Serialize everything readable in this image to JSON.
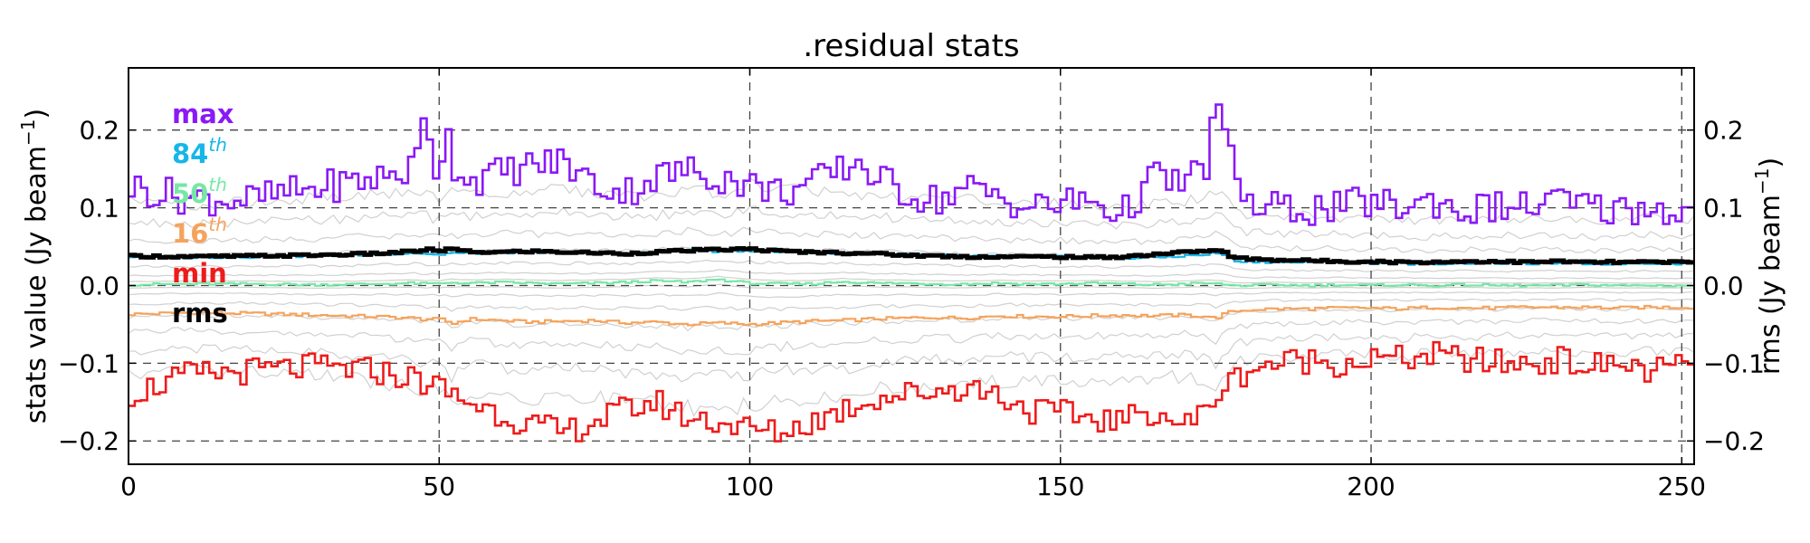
{
  "chart_data": {
    "type": "line",
    "title": ".residual stats",
    "ylabel": "stats value (Jy beam",
    "ylabel_sup": "−1",
    "ylabel_close": ")",
    "ylabel_right": "rms (Jy beam",
    "ylabel_right_sup": "−1",
    "ylabel_right_close": ")",
    "xlim": [
      0,
      252
    ],
    "ylim": [
      -0.23,
      0.28
    ],
    "x_ticks": [
      0,
      50,
      100,
      150,
      200,
      250
    ],
    "y_ticks": [
      -0.2,
      -0.1,
      0.0,
      0.1,
      0.2
    ],
    "x_tick_labels": [
      "0",
      "50",
      "100",
      "150",
      "200",
      "250"
    ],
    "y_tick_labels": [
      "−0.2",
      "−0.1",
      "0.0",
      "0.1",
      "0.2"
    ],
    "y_right_tick_labels": [
      "−0.2",
      "−0.1",
      "0.0",
      "0.1",
      "0.2"
    ],
    "grid": true,
    "legend_position": "top-left",
    "legend": [
      {
        "label": "max",
        "sup": "",
        "color": "#8a19f5"
      },
      {
        "label": "84",
        "sup": "th",
        "color": "#17b6e8"
      },
      {
        "label": "50",
        "sup": "th",
        "color": "#76e8a4"
      },
      {
        "label": "16",
        "sup": "th",
        "color": "#f5a35c"
      },
      {
        "label": "min",
        "sup": "",
        "color": "#ee1b1b"
      },
      {
        "label": "rms",
        "sup": "",
        "color": "#000000"
      }
    ],
    "x_breakpoints": [
      0,
      10,
      20,
      30,
      40,
      46,
      48,
      49,
      50,
      51,
      52,
      55,
      60,
      65,
      70,
      75,
      80,
      85,
      90,
      95,
      100,
      105,
      110,
      115,
      118,
      120,
      125,
      130,
      135,
      140,
      145,
      150,
      155,
      160,
      165,
      170,
      174,
      175,
      176,
      177,
      178,
      180,
      181,
      185,
      190,
      195,
      200,
      205,
      210,
      215,
      220,
      225,
      230,
      235,
      240,
      245,
      250,
      252
    ],
    "series": [
      {
        "name": "max",
        "color": "#8a19f5",
        "width": 2.6,
        "values": [
          0.128,
          0.112,
          0.11,
          0.125,
          0.138,
          0.15,
          0.225,
          0.17,
          0.13,
          0.22,
          0.16,
          0.135,
          0.145,
          0.155,
          0.16,
          0.13,
          0.12,
          0.14,
          0.148,
          0.14,
          0.13,
          0.12,
          0.13,
          0.15,
          0.16,
          0.14,
          0.12,
          0.11,
          0.125,
          0.115,
          0.1,
          0.105,
          0.11,
          0.09,
          0.14,
          0.13,
          0.16,
          0.245,
          0.21,
          0.18,
          0.14,
          0.12,
          0.095,
          0.1,
          0.098,
          0.1,
          0.108,
          0.1,
          0.11,
          0.095,
          0.102,
          0.1,
          0.11,
          0.1,
          0.098,
          0.1,
          0.095,
          0.095
        ]
      },
      {
        "name": "84th",
        "color": "#17b6e8",
        "width": 2.2,
        "values": [
          0.037,
          0.036,
          0.037,
          0.038,
          0.04,
          0.042,
          0.041,
          0.04,
          0.039,
          0.041,
          0.042,
          0.041,
          0.043,
          0.042,
          0.043,
          0.042,
          0.041,
          0.043,
          0.045,
          0.044,
          0.045,
          0.043,
          0.042,
          0.042,
          0.041,
          0.041,
          0.04,
          0.039,
          0.038,
          0.037,
          0.037,
          0.037,
          0.036,
          0.035,
          0.036,
          0.038,
          0.04,
          0.042,
          0.041,
          0.038,
          0.033,
          0.03,
          0.031,
          0.03,
          0.03,
          0.03,
          0.029,
          0.028,
          0.028,
          0.029,
          0.029,
          0.028,
          0.029,
          0.028,
          0.028,
          0.029,
          0.028,
          0.028
        ]
      },
      {
        "name": "50th",
        "color": "#76e8a4",
        "width": 2.2,
        "values": [
          0.001,
          0.002,
          0.002,
          0.001,
          0.002,
          0.003,
          0.002,
          0.003,
          0.002,
          0.003,
          0.004,
          0.003,
          0.004,
          0.003,
          0.002,
          0.003,
          0.004,
          0.006,
          0.004,
          0.008,
          0.003,
          0.002,
          0.002,
          0.005,
          0.004,
          0.003,
          0.003,
          0.002,
          0.002,
          0.003,
          0.002,
          0.002,
          0.003,
          0.002,
          0.001,
          0.002,
          0.003,
          0.002,
          0.002,
          0.001,
          0.0,
          0.0,
          0.0,
          0.001,
          0.0,
          0.001,
          0.0,
          0.001,
          0.0,
          0.001,
          0.0,
          0.0,
          0.0,
          0.001,
          0.0,
          0.0,
          0.0,
          0.0
        ]
      },
      {
        "name": "16th",
        "color": "#f5a35c",
        "width": 2.2,
        "values": [
          -0.037,
          -0.035,
          -0.036,
          -0.038,
          -0.04,
          -0.042,
          -0.044,
          -0.042,
          -0.045,
          -0.043,
          -0.05,
          -0.043,
          -0.045,
          -0.047,
          -0.046,
          -0.045,
          -0.048,
          -0.047,
          -0.05,
          -0.048,
          -0.05,
          -0.048,
          -0.046,
          -0.045,
          -0.044,
          -0.043,
          -0.042,
          -0.041,
          -0.042,
          -0.039,
          -0.04,
          -0.04,
          -0.039,
          -0.038,
          -0.039,
          -0.038,
          -0.04,
          -0.043,
          -0.038,
          -0.036,
          -0.033,
          -0.032,
          -0.031,
          -0.03,
          -0.03,
          -0.029,
          -0.029,
          -0.03,
          -0.028,
          -0.029,
          -0.029,
          -0.028,
          -0.028,
          -0.028,
          -0.029,
          -0.028,
          -0.028,
          -0.028
        ]
      },
      {
        "name": "min",
        "color": "#ee1b1b",
        "width": 2.6,
        "values": [
          -0.14,
          -0.115,
          -0.11,
          -0.105,
          -0.11,
          -0.12,
          -0.125,
          -0.13,
          -0.13,
          -0.135,
          -0.14,
          -0.15,
          -0.165,
          -0.18,
          -0.19,
          -0.175,
          -0.16,
          -0.15,
          -0.17,
          -0.175,
          -0.185,
          -0.19,
          -0.175,
          -0.16,
          -0.15,
          -0.145,
          -0.14,
          -0.135,
          -0.13,
          -0.14,
          -0.16,
          -0.165,
          -0.17,
          -0.175,
          -0.16,
          -0.18,
          -0.16,
          -0.14,
          -0.13,
          -0.13,
          -0.12,
          -0.11,
          -0.105,
          -0.1,
          -0.095,
          -0.1,
          -0.095,
          -0.095,
          -0.09,
          -0.095,
          -0.1,
          -0.1,
          -0.095,
          -0.105,
          -0.1,
          -0.11,
          -0.105,
          -0.105
        ]
      },
      {
        "name": "rms",
        "color": "#000000",
        "width": 5,
        "values": [
          0.038,
          0.037,
          0.038,
          0.039,
          0.041,
          0.044,
          0.046,
          0.046,
          0.044,
          0.046,
          0.047,
          0.043,
          0.043,
          0.044,
          0.043,
          0.042,
          0.041,
          0.043,
          0.045,
          0.046,
          0.047,
          0.044,
          0.043,
          0.042,
          0.042,
          0.041,
          0.039,
          0.038,
          0.037,
          0.037,
          0.037,
          0.037,
          0.036,
          0.037,
          0.04,
          0.043,
          0.045,
          0.045,
          0.044,
          0.04,
          0.035,
          0.035,
          0.034,
          0.033,
          0.032,
          0.031,
          0.031,
          0.03,
          0.03,
          0.031,
          0.031,
          0.03,
          0.031,
          0.03,
          0.03,
          0.03,
          0.03,
          0.03
        ]
      }
    ]
  }
}
